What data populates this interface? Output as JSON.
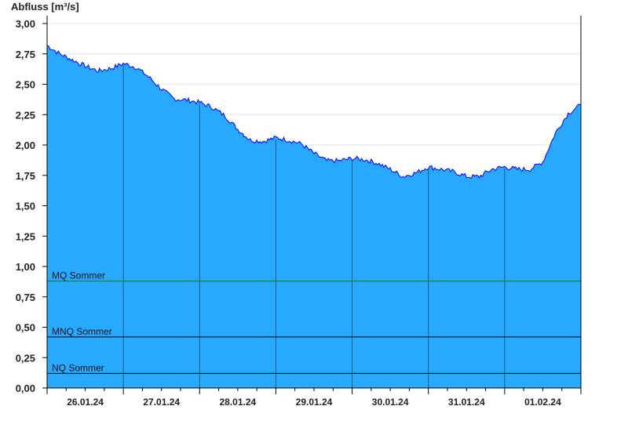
{
  "chart_data": {
    "type": "area",
    "ylabel": "Abfluss [m³/s]",
    "ylim": [
      0,
      3
    ],
    "yticks": [
      "0,00",
      "0,25",
      "0,50",
      "0,75",
      "1,00",
      "1,25",
      "1,50",
      "1,75",
      "2,00",
      "2,25",
      "2,50",
      "2,75",
      "3,00"
    ],
    "xlim": [
      "26.01.24 00:00",
      "02.02.24 00:00"
    ],
    "xtick_labels": [
      "26.01.24",
      "27.01.24",
      "28.01.24",
      "29.01.24",
      "30.01.24",
      "31.01.24",
      "01.02.24"
    ],
    "grid": true,
    "fill_color": "#29a8ff",
    "line_color": "#0000ff",
    "step_hours": 4,
    "x": [
      "26.01.24 00:00",
      "26.01.24 04:00",
      "26.01.24 08:00",
      "26.01.24 12:00",
      "26.01.24 16:00",
      "26.01.24 20:00",
      "27.01.24 00:00",
      "27.01.24 04:00",
      "27.01.24 08:00",
      "27.01.24 12:00",
      "27.01.24 16:00",
      "27.01.24 20:00",
      "28.01.24 00:00",
      "28.01.24 04:00",
      "28.01.24 08:00",
      "28.01.24 12:00",
      "28.01.24 16:00",
      "28.01.24 20:00",
      "29.01.24 00:00",
      "29.01.24 04:00",
      "29.01.24 08:00",
      "29.01.24 12:00",
      "29.01.24 16:00",
      "29.01.24 20:00",
      "30.01.24 00:00",
      "30.01.24 04:00",
      "30.01.24 08:00",
      "30.01.24 12:00",
      "30.01.24 16:00",
      "30.01.24 20:00",
      "31.01.24 00:00",
      "31.01.24 04:00",
      "31.01.24 08:00",
      "31.01.24 12:00",
      "31.01.24 16:00",
      "31.01.24 20:00",
      "01.02.24 00:00",
      "01.02.24 04:00",
      "01.02.24 08:00",
      "01.02.24 12:00",
      "01.02.24 16:00",
      "01.02.24 20:00",
      "02.02.24 00:00"
    ],
    "y": [
      2.82,
      2.75,
      2.7,
      2.65,
      2.61,
      2.63,
      2.67,
      2.64,
      2.56,
      2.46,
      2.38,
      2.37,
      2.35,
      2.31,
      2.24,
      2.13,
      2.04,
      2.03,
      2.06,
      2.04,
      2.01,
      1.93,
      1.87,
      1.87,
      1.89,
      1.88,
      1.85,
      1.8,
      1.74,
      1.77,
      1.82,
      1.8,
      1.78,
      1.74,
      1.74,
      1.8,
      1.82,
      1.8,
      1.8,
      1.86,
      2.1,
      2.26,
      2.33
    ],
    "reference_lines": [
      {
        "label": "MQ Sommer",
        "value": 0.88,
        "color": "#008000"
      },
      {
        "label": "MNQ Sommer",
        "value": 0.42,
        "color": "#000000"
      },
      {
        "label": "NQ Sommer",
        "value": 0.12,
        "color": "#000000"
      }
    ]
  }
}
